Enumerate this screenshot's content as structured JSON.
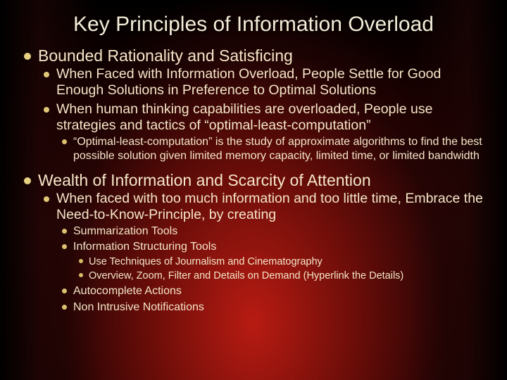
{
  "title": "Key Principles of Information Overload",
  "sections": [
    {
      "heading": "Bounded Rationality and Satisficing",
      "items": [
        {
          "text": "When Faced with Information Overload, People Settle for Good Enough Solutions in Preference to Optimal Solutions"
        },
        {
          "text": "When human thinking capabilities are overloaded, People use strategies and tactics of “optimal-least-computation”",
          "items": [
            {
              "text": "“Optimal-least-computation” is the study of approximate algorithms to find the best possible solution given limited memory capacity, limited time, or limited bandwidth"
            }
          ]
        }
      ]
    },
    {
      "heading": "Wealth of Information and Scarcity of Attention",
      "items": [
        {
          "text": "When faced with too much information and too little time, Embrace the Need-to-Know-Principle, by creating",
          "items": [
            {
              "text": "Summarization Tools"
            },
            {
              "text": "Information Structuring Tools",
              "items": [
                {
                  "text": "Use Techniques of Journalism and Cinematography"
                },
                {
                  "text": "Overview, Zoom, Filter and Details on Demand (Hyperlink the Details)"
                }
              ]
            },
            {
              "text": "Autocomplete Actions"
            },
            {
              "text": "Non Intrusive Notifications"
            }
          ]
        }
      ]
    }
  ]
}
